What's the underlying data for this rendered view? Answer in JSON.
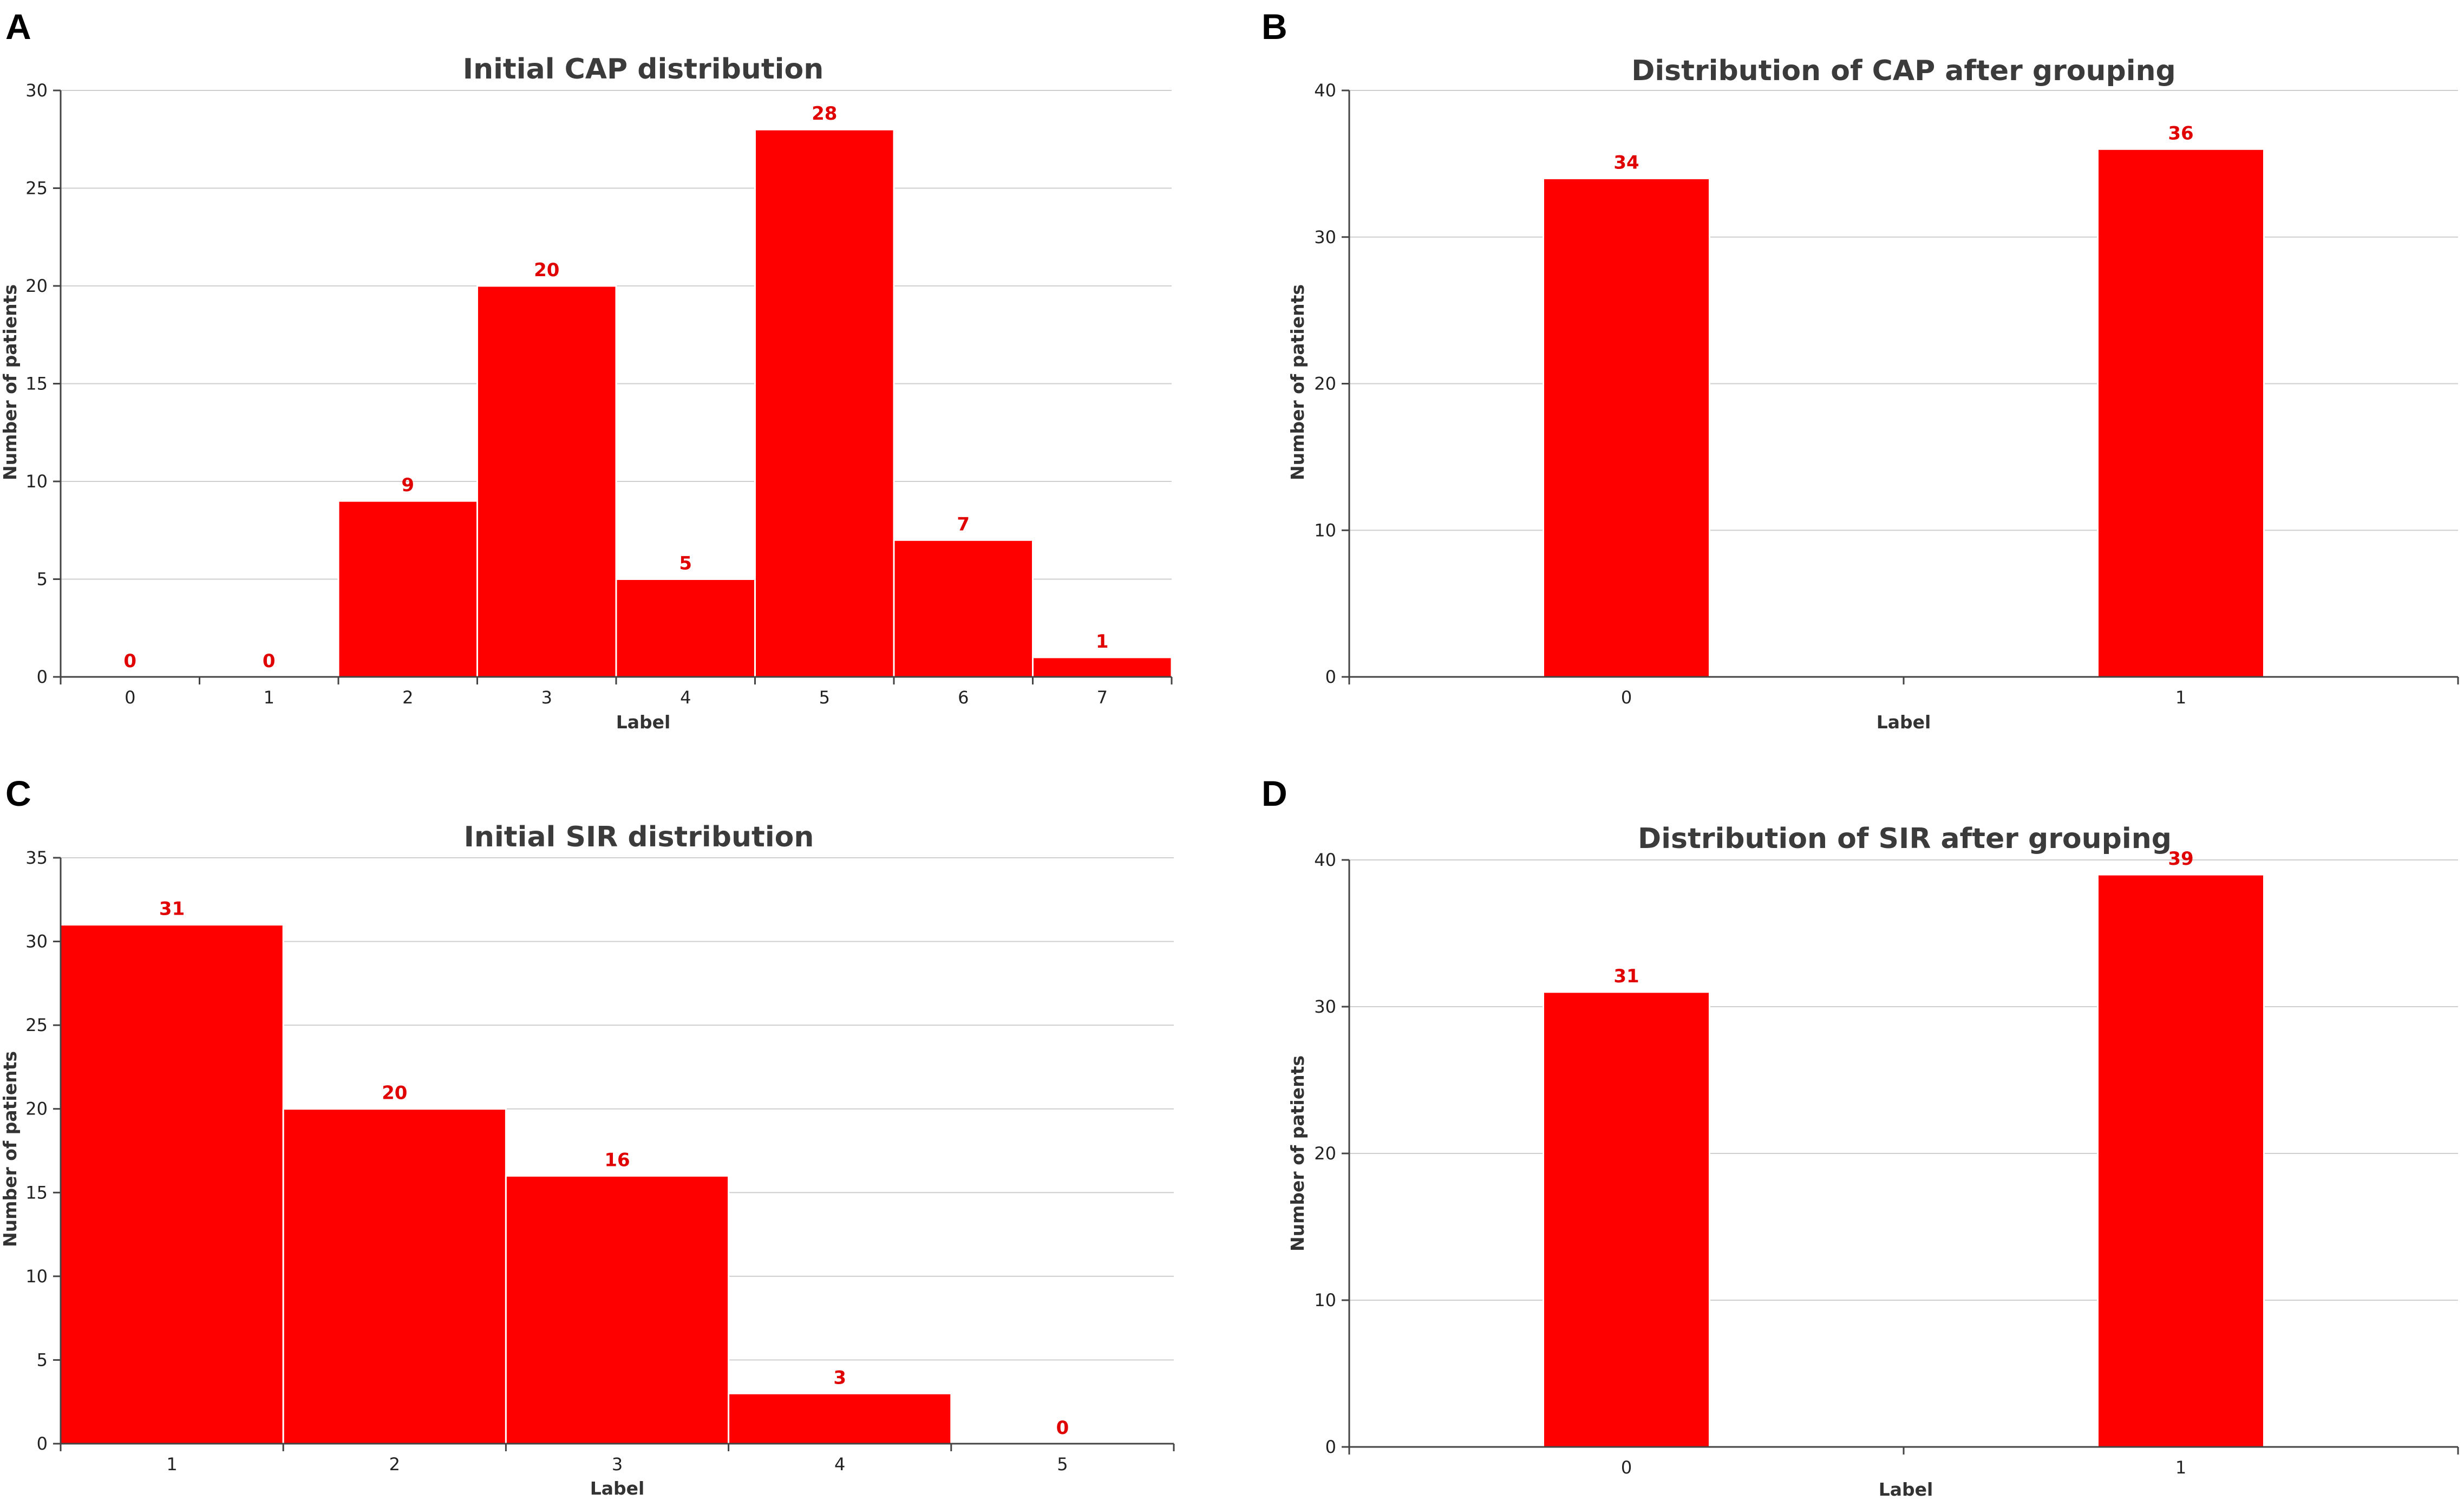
{
  "figure": {
    "panels": [
      "A",
      "B",
      "C",
      "D"
    ]
  },
  "chart_data": [
    {
      "panel": "A",
      "type": "bar",
      "title": "Initial CAP distribution",
      "xlabel": "Label",
      "ylabel": "Number of patients",
      "categories": [
        "0",
        "1",
        "2",
        "3",
        "4",
        "5",
        "6",
        "7"
      ],
      "values": [
        0,
        0,
        9,
        20,
        5,
        28,
        7,
        1
      ],
      "ylim": [
        0,
        30
      ],
      "yticks": [
        0,
        5,
        10,
        15,
        20,
        25,
        30
      ],
      "grid": true,
      "bar_color": "#ff0000",
      "label_color": "#e00000"
    },
    {
      "panel": "B",
      "type": "bar",
      "title": "Distribution of CAP after grouping",
      "xlabel": "Label",
      "ylabel": "Number of patients",
      "categories": [
        "0",
        "1"
      ],
      "values": [
        34,
        36
      ],
      "ylim": [
        0,
        40
      ],
      "yticks": [
        0,
        10,
        20,
        30,
        40
      ],
      "grid": true,
      "bar_color": "#ff0000",
      "label_color": "#e00000"
    },
    {
      "panel": "C",
      "type": "bar",
      "title": "Initial SIR distribution",
      "xlabel": "Label",
      "ylabel": "Number of patients",
      "categories": [
        "1",
        "2",
        "3",
        "4",
        "5"
      ],
      "values": [
        31,
        20,
        16,
        3,
        0
      ],
      "ylim": [
        0,
        35
      ],
      "yticks": [
        0,
        5,
        10,
        15,
        20,
        25,
        30,
        35
      ],
      "grid": true,
      "bar_color": "#ff0000",
      "label_color": "#e00000"
    },
    {
      "panel": "D",
      "type": "bar",
      "title": "Distribution of SIR after grouping",
      "xlabel": "Label",
      "ylabel": "Number of patients",
      "categories": [
        "0",
        "1"
      ],
      "values": [
        31,
        39
      ],
      "ylim": [
        0,
        40
      ],
      "yticks": [
        0,
        10,
        20,
        30,
        40
      ],
      "grid": true,
      "bar_color": "#ff0000",
      "label_color": "#e00000"
    }
  ]
}
